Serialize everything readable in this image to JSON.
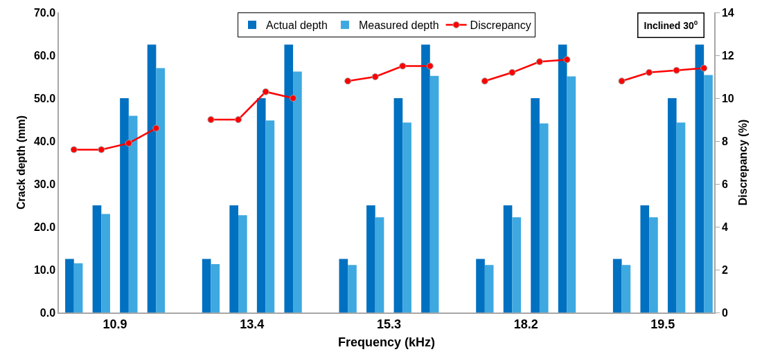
{
  "chart_data": {
    "type": "bar",
    "xlabel": "Frequency (kHz)",
    "ylabel": "Crack depth (mm)",
    "y2label": "Discrepancy (%)",
    "categories": [
      null,
      null,
      null,
      "10.9",
      null,
      null,
      null,
      null,
      null,
      null,
      null,
      null,
      null,
      "13.4",
      null,
      null,
      null,
      null,
      null,
      null,
      null,
      null,
      null,
      "15.3",
      null,
      null,
      null,
      null,
      null,
      null,
      null,
      null,
      null,
      "18.2",
      null,
      null,
      null,
      null,
      null,
      null,
      null,
      null,
      null,
      "19.5",
      null,
      null,
      null
    ],
    "ylim": [
      0,
      70
    ],
    "yticks": [
      {
        "value": 0,
        "label": "0.0"
      },
      {
        "value": 10,
        "label": "10.0"
      },
      {
        "value": 20,
        "label": "20.0"
      },
      {
        "value": 30,
        "label": "30.0"
      },
      {
        "value": 40,
        "label": "40.0"
      },
      {
        "value": 50,
        "label": "50.0"
      },
      {
        "value": 60,
        "label": "60.0"
      },
      {
        "value": 70,
        "label": "70.0"
      }
    ],
    "y2lim": [
      0,
      14
    ],
    "y2ticks": [
      0,
      2,
      4,
      6,
      8,
      10,
      12,
      14
    ],
    "series": [
      {
        "name": "Actual depth",
        "color": "#0070c0",
        "values": [
          12.5,
          null,
          25,
          null,
          50,
          null,
          62.5,
          null,
          null,
          null,
          12.5,
          null,
          25,
          null,
          50,
          null,
          62.5,
          null,
          null,
          null,
          12.5,
          null,
          25,
          null,
          50,
          null,
          62.5,
          null,
          null,
          null,
          12.5,
          null,
          25,
          null,
          50,
          null,
          62.5,
          null,
          null,
          null,
          12.5,
          null,
          25,
          null,
          50,
          null,
          62.5
        ]
      },
      {
        "name": "Measured depth",
        "color": "#3ea8e0",
        "values": [
          11.5,
          null,
          23.0,
          null,
          45.9,
          null,
          57.0,
          null,
          null,
          null,
          11.3,
          null,
          22.7,
          null,
          44.8,
          null,
          56.2,
          null,
          null,
          null,
          11.1,
          null,
          22.2,
          null,
          44.3,
          null,
          55.2,
          null,
          null,
          null,
          11.1,
          null,
          22.2,
          null,
          44.1,
          null,
          55.1,
          null,
          null,
          null,
          11.1,
          null,
          22.2,
          null,
          44.3,
          null,
          55.4
        ]
      },
      {
        "name": "Discrepancy",
        "type": "line",
        "axis": "y2",
        "color": "#ff0000",
        "marker": "circle",
        "values": [
          7.6,
          null,
          7.6,
          null,
          7.9,
          null,
          8.6,
          null,
          null,
          null,
          9.0,
          null,
          9.0,
          null,
          10.3,
          null,
          10.0,
          null,
          null,
          null,
          10.8,
          null,
          11.0,
          null,
          11.5,
          null,
          11.5,
          null,
          null,
          null,
          10.8,
          null,
          11.2,
          null,
          11.7,
          null,
          11.8,
          null,
          null,
          null,
          10.8,
          null,
          11.2,
          null,
          11.3,
          null,
          11.4
        ]
      }
    ],
    "legend": "top",
    "annotations": [
      "Inclined 30$^{0}$"
    ]
  }
}
